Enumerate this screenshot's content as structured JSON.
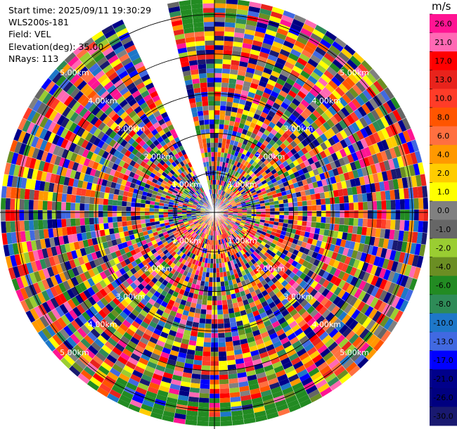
{
  "header": {
    "start_time": "Start time: 2025/09/11 19:30:29",
    "site": "WLS200s-181",
    "field": "Field: VEL",
    "elevation": "Elevation(deg): 35.00",
    "nrays": "NRays: 113"
  },
  "chart_data": {
    "type": "heatmap",
    "projection": "polar-ppi",
    "field": "VEL",
    "unit": "m/s",
    "elevation_deg": 35.0,
    "nrays": 113,
    "max_range_km": 5.4,
    "range_rings_km": [
      1,
      2,
      3,
      4,
      5
    ],
    "range_ring_labels": [
      "1.00km",
      "2.00km",
      "3.00km",
      "4.00km",
      "5.00km"
    ],
    "no_data_sector_deg": [
      333,
      348
    ],
    "colorbar": {
      "unit_label": "m/s",
      "ticks": [
        "26.0",
        "21.0",
        "17.0",
        "13.0",
        "10.0",
        "8.0",
        "6.0",
        "4.0",
        "2.0",
        "1.0",
        "0.0",
        "-1.0",
        "-2.0",
        "-4.0",
        "-6.0",
        "-8.0",
        "-10.0",
        "-13.0",
        "-17.0",
        "-21.0",
        "-26.0",
        "-30.0"
      ],
      "colors": [
        "#ff1493",
        "#ff69b4",
        "#ff0000",
        "#e8231c",
        "#ff3c28",
        "#ff5500",
        "#ff7040",
        "#ff9900",
        "#ffcc00",
        "#ffff00",
        "#808080",
        "#666666",
        "#9acd32",
        "#6b8e23",
        "#228b22",
        "#2e8b57",
        "#1e77c8",
        "#4169e1",
        "#0000ff",
        "#00008b",
        "#000080",
        "#191970"
      ]
    }
  }
}
